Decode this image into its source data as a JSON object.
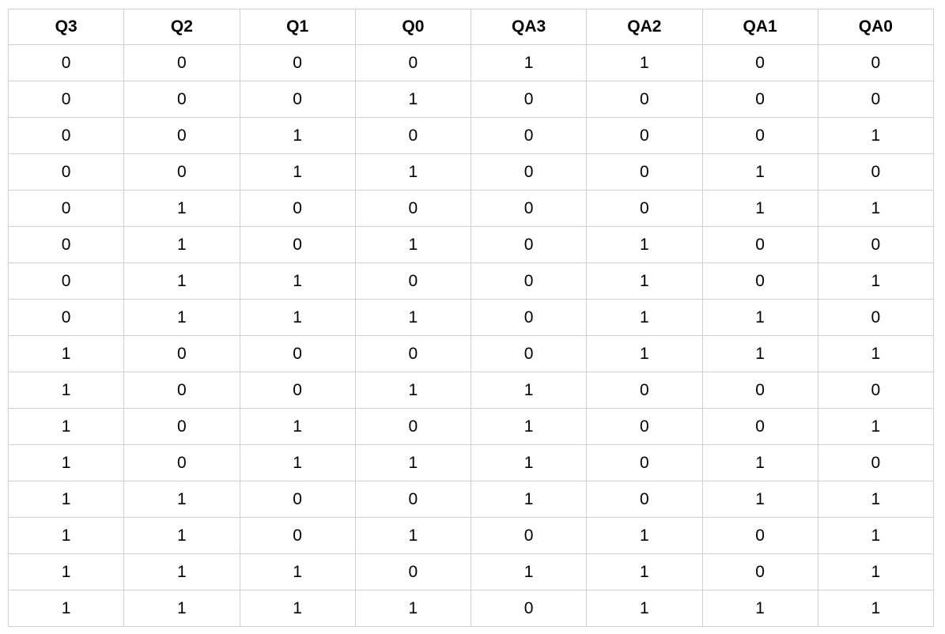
{
  "table": {
    "headers": [
      "Q3",
      "Q2",
      "Q1",
      "Q0",
      "QA3",
      "QA2",
      "QA1",
      "QA0"
    ],
    "rows": [
      [
        "0",
        "0",
        "0",
        "0",
        "1",
        "1",
        "0",
        "0"
      ],
      [
        "0",
        "0",
        "0",
        "1",
        "0",
        "0",
        "0",
        "0"
      ],
      [
        "0",
        "0",
        "1",
        "0",
        "0",
        "0",
        "0",
        "1"
      ],
      [
        "0",
        "0",
        "1",
        "1",
        "0",
        "0",
        "1",
        "0"
      ],
      [
        "0",
        "1",
        "0",
        "0",
        "0",
        "0",
        "1",
        "1"
      ],
      [
        "0",
        "1",
        "0",
        "1",
        "0",
        "1",
        "0",
        "0"
      ],
      [
        "0",
        "1",
        "1",
        "0",
        "0",
        "1",
        "0",
        "1"
      ],
      [
        "0",
        "1",
        "1",
        "1",
        "0",
        "1",
        "1",
        "0"
      ],
      [
        "1",
        "0",
        "0",
        "0",
        "0",
        "1",
        "1",
        "1"
      ],
      [
        "1",
        "0",
        "0",
        "1",
        "1",
        "0",
        "0",
        "0"
      ],
      [
        "1",
        "0",
        "1",
        "0",
        "1",
        "0",
        "0",
        "1"
      ],
      [
        "1",
        "0",
        "1",
        "1",
        "1",
        "0",
        "1",
        "0"
      ],
      [
        "1",
        "1",
        "0",
        "0",
        "1",
        "0",
        "1",
        "1"
      ],
      [
        "1",
        "1",
        "0",
        "1",
        "0",
        "1",
        "0",
        "1"
      ],
      [
        "1",
        "1",
        "1",
        "0",
        "1",
        "1",
        "0",
        "1"
      ],
      [
        "1",
        "1",
        "1",
        "1",
        "0",
        "1",
        "1",
        "1"
      ]
    ]
  }
}
